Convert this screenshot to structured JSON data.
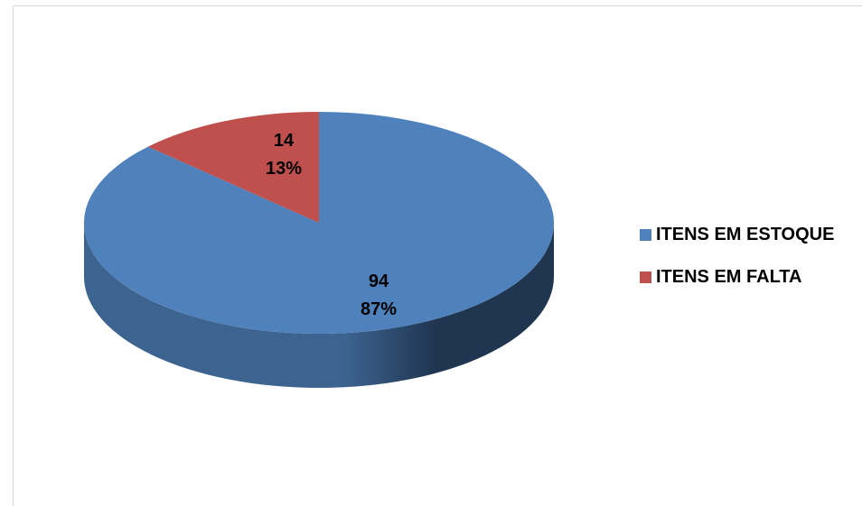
{
  "chart_data": {
    "type": "pie",
    "style": "3d",
    "title": "",
    "slices": [
      {
        "label": "ITENS EM ESTOQUE",
        "value": 94,
        "percent": "87%",
        "color": "#4f81bd",
        "side_dark": "#1f3550",
        "side_light": "#3d6491"
      },
      {
        "label": "ITENS EM FALTA",
        "value": 14,
        "percent": "13%",
        "color": "#c0504d",
        "side_dark": "#7a2f2d",
        "side_light": "#9e3f3c"
      }
    ],
    "legend_position": "right"
  }
}
